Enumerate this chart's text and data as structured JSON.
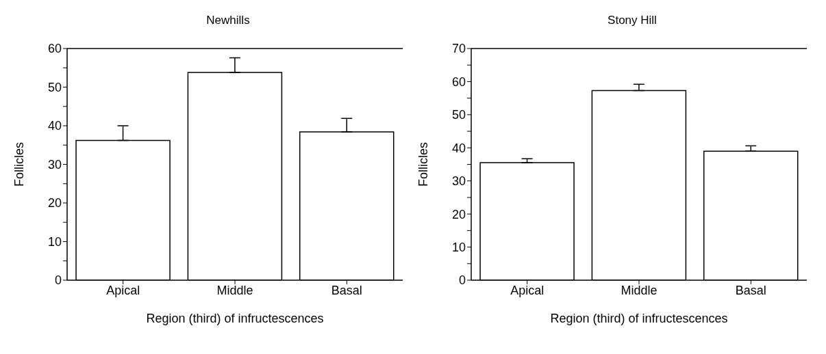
{
  "chart_data": [
    {
      "type": "bar",
      "title": "Newhills",
      "xlabel": "Region (third) of infructescences",
      "ylabel": "Follicles",
      "categories": [
        "Apical",
        "Middle",
        "Basal"
      ],
      "values": [
        36.2,
        53.8,
        38.4
      ],
      "errors": [
        [
          36.2,
          40.0
        ],
        [
          53.8,
          57.6
        ],
        [
          38.4,
          41.9
        ]
      ],
      "color": "#ffffff",
      "ylim": [
        0,
        60
      ],
      "yticks": [
        0,
        {
          "value": 5,
          "label": null
        },
        10,
        {
          "value": 15,
          "label": null
        },
        20,
        {
          "value": 25,
          "label": null
        },
        30,
        {
          "value": 35,
          "label": null
        },
        40,
        {
          "value": 45,
          "label": null
        },
        50,
        {
          "value": 55,
          "label": null
        },
        60
      ],
      "grid": false,
      "legend": false
    },
    {
      "type": "bar",
      "title": "Stony Hill",
      "xlabel": "Region (third) of infructescences",
      "ylabel": "Follicles",
      "categories": [
        "Apical",
        "Middle",
        "Basal"
      ],
      "values": [
        35.5,
        57.3,
        39.0
      ],
      "errors": [
        [
          35.5,
          36.7
        ],
        [
          57.3,
          59.2
        ],
        [
          39.0,
          40.6
        ]
      ],
      "color": "#ffffff",
      "ylim": [
        0,
        70
      ],
      "yticks": [
        0,
        {
          "value": 5,
          "label": null
        },
        10,
        {
          "value": 15,
          "label": null
        },
        20,
        {
          "value": 25,
          "label": null
        },
        30,
        {
          "value": 35,
          "label": null
        },
        40,
        {
          "value": 45,
          "label": null
        },
        50,
        {
          "value": 55,
          "label": null
        },
        60,
        {
          "value": 65,
          "label": null
        },
        70
      ],
      "grid": false,
      "legend": false
    }
  ]
}
